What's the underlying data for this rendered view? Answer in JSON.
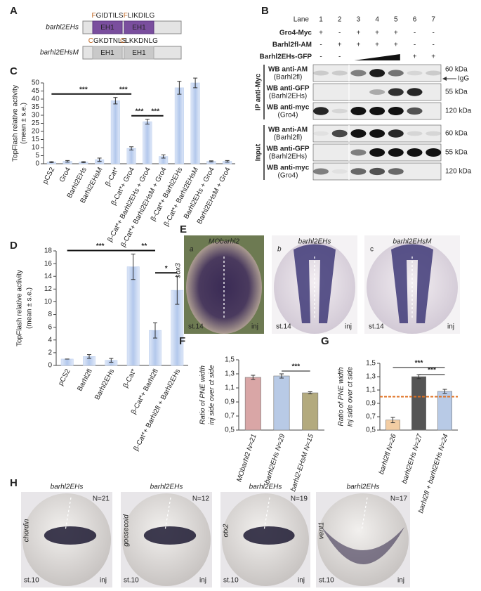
{
  "panel_a": {
    "label": "A",
    "constructs": [
      {
        "name": "barhl2EHs",
        "motifs": [
          "FGIDTILS",
          "FLIKDILG"
        ],
        "domains": [
          "EH1",
          "EH1"
        ]
      },
      {
        "name": "barhl2EHsM",
        "motifs": [
          "CGKDTNLS",
          "CLKKDNLG"
        ],
        "domains": [
          "EH1",
          "EH1"
        ]
      }
    ]
  },
  "panel_b": {
    "label": "B",
    "lane_title": "Lane",
    "lanes": [
      1,
      2,
      3,
      4,
      5,
      6,
      7
    ],
    "conditions": [
      {
        "name": "Gro4-Myc",
        "cells": [
          "+",
          "-",
          "+",
          "+",
          "+",
          "-",
          "-"
        ]
      },
      {
        "name": "Barhl2fl-AM",
        "cells": [
          "-",
          "+",
          "+",
          "+",
          "+",
          "-",
          "-"
        ]
      },
      {
        "name": "Barhl2EHs-GFP",
        "cells": [
          "-",
          "-",
          null,
          null,
          null,
          "+",
          "+"
        ]
      }
    ],
    "sections": [
      {
        "name": "IP anti-Myc",
        "blots": [
          {
            "antibody": "WB anti-AM",
            "target": "(Barhl2fl)",
            "size": "60 kDa",
            "note": "IgG"
          },
          {
            "antibody": "WB anti-GFP",
            "target": "(Barhl2EHs)",
            "size": "55  kDa"
          },
          {
            "antibody": "WB anti-myc",
            "target": "(Gro4)",
            "size": "120 kDa"
          }
        ]
      },
      {
        "name": "Input",
        "blots": [
          {
            "antibody": "WB anti-AM",
            "target": "(Barhl2fl)",
            "size": "60 kDa"
          },
          {
            "antibody": "WB anti-GFP",
            "target": "(Barhl2EHs)",
            "size": "55 kDa"
          },
          {
            "antibody": "WB anti-myc",
            "target": "(Gro4)",
            "size": "120 kDa"
          }
        ]
      }
    ]
  },
  "panel_e": {
    "label": "E",
    "gene": "sox3",
    "images": [
      {
        "title": "MObarhl2",
        "letter": "a",
        "stage": "st.14",
        "side": "inj"
      },
      {
        "title": "barhl2EHs",
        "letter": "b",
        "stage": "st.14",
        "side": "inj"
      },
      {
        "title": "barhl2EHsM",
        "letter": "c",
        "stage": "st.14",
        "side": "inj"
      }
    ]
  },
  "panel_h": {
    "label": "H",
    "images": [
      {
        "title": "barhl2EHs",
        "count": "N=21",
        "gene": "chordin",
        "stage": "st.10",
        "side": "inj"
      },
      {
        "title": "barhl2EHs",
        "count": "N=12",
        "gene": "goosecoid",
        "stage": "st.10",
        "side": "inj"
      },
      {
        "title": "barhl2EHs",
        "count": "N=19",
        "gene": "otx2",
        "stage": "st.10",
        "side": "inj"
      },
      {
        "title": "barhl2EHs",
        "count": "N=17",
        "gene": "vent1",
        "stage": "st.10",
        "side": "inj"
      }
    ]
  },
  "chart_data": [
    {
      "type": "bar",
      "label": "C",
      "ylabel": [
        "TopFlash relative activity",
        "(mean ± s.e.)"
      ],
      "categories": [
        "pCS2",
        "Gro4",
        "Barhl2EHs",
        "Barhl2EHsM",
        "β-Cat*",
        "β-Cat*+ Gro4",
        "β-Cat*+ Barhl2EHs + Gro4",
        "β-Cat*+ Barhl2EHsM + Gro4",
        "β-Cat*+ Barhl2EHs",
        "β-Cat*+ Barhl2EHsM",
        "Barhl2EHs + Gro4",
        "Barhl2EHsM + Gro4"
      ],
      "values": [
        1,
        1.5,
        1,
        2.5,
        39,
        9.5,
        26,
        4.5,
        47,
        50,
        1.5,
        1.5
      ],
      "errors": [
        0.3,
        0.5,
        0.3,
        1,
        2,
        1,
        1.5,
        1,
        4,
        3,
        0.3,
        0.5
      ],
      "color": "#bccfee",
      "ylim": [
        0,
        50
      ],
      "yticks": [
        0,
        5,
        10,
        15,
        20,
        25,
        30,
        35,
        40,
        45,
        50
      ],
      "annotations": [
        {
          "text": "***",
          "from": 0,
          "to": 4
        },
        {
          "text": "***",
          "from": 4,
          "to": 5
        },
        {
          "text": "***",
          "from": 5,
          "to": 6
        },
        {
          "text": "***",
          "from": 6,
          "to": 7
        }
      ]
    },
    {
      "type": "bar",
      "label": "D",
      "ylabel": [
        "TopFlash relative activity",
        "(mean ± s.e.)"
      ],
      "categories": [
        "pCS2",
        "Barhl2fl",
        "Barhl2EHs",
        "β-Cat*",
        "β-Cat*+ Barhl2fl",
        "β-Cat*+ Barhl2fl + Barhl2EHs"
      ],
      "values": [
        1,
        1.4,
        0.8,
        15.5,
        5.5,
        11.8
      ],
      "errors": [
        0,
        0.3,
        0.3,
        2,
        1.2,
        2.2
      ],
      "color": "#bccfee",
      "ylim": [
        0,
        18
      ],
      "yticks": [
        0,
        2,
        4,
        6,
        8,
        10,
        12,
        14,
        16,
        18
      ],
      "annotations": [
        {
          "text": "***",
          "from": 0,
          "to": 3
        },
        {
          "text": "**",
          "from": 3,
          "to": 4
        },
        {
          "text": "*",
          "from": 4,
          "to": 5
        }
      ]
    },
    {
      "type": "bar",
      "label": "F",
      "ylabel": [
        "Ratio of PNE width",
        "inj side over ct side"
      ],
      "categories": [
        "MObarhl2 N=21",
        "barhl2EHs N=29",
        "barhl2-EHsM N=15"
      ],
      "values": [
        1.25,
        1.27,
        1.03
      ],
      "errors": [
        0.03,
        0.03,
        0.015
      ],
      "colors": [
        "#d9a6a6",
        "#b8cae6",
        "#b3aa7e"
      ],
      "ylim": [
        0.5,
        1.5
      ],
      "yticks": [
        {
          "value": 0.5,
          "label": "0,5"
        },
        {
          "value": 0.7,
          "label": "0,7"
        },
        {
          "value": 0.9,
          "label": "0,9"
        },
        {
          "value": 1.1,
          "label": "1,1"
        },
        {
          "value": 1.3,
          "label": "1,3"
        },
        {
          "value": 1.5,
          "label": "1,5"
        }
      ],
      "annotations": [
        {
          "text": "***",
          "from": 1,
          "to": 2
        }
      ]
    },
    {
      "type": "bar",
      "label": "G",
      "ylabel": [
        "Ratio of PNE width",
        "inj side over ct side"
      ],
      "categories": [
        "barhl2fl N=26",
        "barhl2EHs N=27",
        "barhl2fl + barhl2EHs N=24"
      ],
      "values": [
        0.65,
        1.3,
        1.08
      ],
      "errors": [
        0.04,
        0.03,
        0.03
      ],
      "colors": [
        "#f3cda3",
        "#555555",
        "#b8cae6"
      ],
      "ylim": [
        0.5,
        1.5
      ],
      "yticks": [
        {
          "value": 0.5,
          "label": "0,5"
        },
        {
          "value": 0.7,
          "label": "0,7"
        },
        {
          "value": 0.9,
          "label": "0,9"
        },
        {
          "value": 1.1,
          "label": "1,1"
        },
        {
          "value": 1.3,
          "label": "1,3"
        },
        {
          "value": 1.5,
          "label": "1,5"
        }
      ],
      "reference_line": 1,
      "reference_color": "#e07020",
      "annotations": [
        {
          "text": "***",
          "from": 0,
          "to": 2
        },
        {
          "text": "***",
          "from": 1,
          "to": 2
        }
      ]
    }
  ]
}
